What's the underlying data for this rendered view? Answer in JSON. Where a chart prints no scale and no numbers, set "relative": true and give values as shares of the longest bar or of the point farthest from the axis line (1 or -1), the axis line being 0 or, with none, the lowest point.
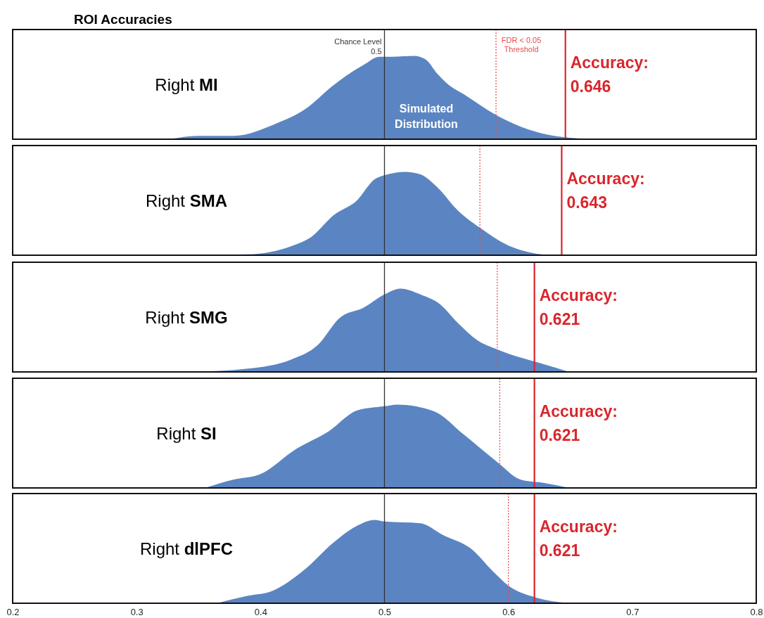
{
  "chart_data": [
    {
      "type": "area",
      "title": "ROI Accuracies",
      "annotations": [
        "Right MI",
        "Simulated Distribution"
      ],
      "relative": true,
      "color": "#5b85c2",
      "xlim": [
        0.2,
        0.8
      ],
      "xticks": [
        0.2,
        0.3,
        0.4,
        0.5,
        0.6,
        0.7,
        0.8
      ],
      "tick_labels": false,
      "x": [
        0.327,
        0.35,
        0.378,
        0.413,
        0.436,
        0.459,
        0.483,
        0.496,
        0.506,
        0.524,
        0.533,
        0.543,
        0.552,
        0.564,
        0.59,
        0.61,
        0.633,
        0.656,
        0.668
      ],
      "values": [
        0,
        0.04,
        0.04,
        0.19,
        0.36,
        0.65,
        0.89,
        0.99,
        0.99,
        1,
        0.96,
        0.78,
        0.65,
        0.54,
        0.29,
        0.15,
        0.05,
        0.01,
        0
      ],
      "ref_lines": [
        {
          "axis": "x",
          "value": 0.5,
          "label": "Chance Level 0.5",
          "color": "#333333"
        },
        {
          "axis": "x",
          "value": 0.59,
          "label": "FDR < 0.05 Threshold",
          "color": "#e8474a",
          "line_style": "dotted"
        },
        {
          "axis": "x",
          "value": 0.646,
          "label": "Accuracy: 0.646",
          "color": "#d9262c"
        }
      ]
    },
    {
      "type": "area",
      "annotations": [
        "Right SMA"
      ],
      "relative": true,
      "color": "#5b85c2",
      "xlim": [
        0.2,
        0.8
      ],
      "xticks": [
        0.2,
        0.3,
        0.4,
        0.5,
        0.6,
        0.7,
        0.8
      ],
      "tick_labels": false,
      "x": [
        0.344,
        0.39,
        0.425,
        0.441,
        0.459,
        0.478,
        0.492,
        0.5,
        0.517,
        0.529,
        0.543,
        0.559,
        0.578,
        0.598,
        0.622,
        0.633
      ],
      "values": [
        0,
        0.01,
        0.11,
        0.22,
        0.48,
        0.66,
        0.91,
        0.96,
        1,
        0.97,
        0.81,
        0.54,
        0.32,
        0.13,
        0.02,
        0
      ],
      "ref_lines": [
        {
          "axis": "x",
          "value": 0.5,
          "color": "#333333"
        },
        {
          "axis": "x",
          "value": 0.577,
          "color": "#e8474a",
          "line_style": "dotted"
        },
        {
          "axis": "x",
          "value": 0.643,
          "label": "Accuracy: 0.643",
          "color": "#d9262c"
        }
      ]
    },
    {
      "type": "area",
      "annotations": [
        "Right SMG"
      ],
      "relative": true,
      "color": "#5b85c2",
      "xlim": [
        0.2,
        0.8
      ],
      "xticks": [
        0.2,
        0.3,
        0.4,
        0.5,
        0.6,
        0.7,
        0.8
      ],
      "tick_labels": false,
      "x": [
        0.344,
        0.39,
        0.425,
        0.446,
        0.464,
        0.483,
        0.5,
        0.513,
        0.529,
        0.545,
        0.559,
        0.575,
        0.591,
        0.629,
        0.649
      ],
      "values": [
        0,
        0.04,
        0.15,
        0.32,
        0.65,
        0.77,
        0.93,
        1,
        0.93,
        0.81,
        0.59,
        0.38,
        0.27,
        0.09,
        0
      ],
      "ref_lines": [
        {
          "axis": "x",
          "value": 0.5,
          "color": "#333333"
        },
        {
          "axis": "x",
          "value": 0.591,
          "color": "#e8474a",
          "line_style": "dotted"
        },
        {
          "axis": "x",
          "value": 0.621,
          "label": "Accuracy: 0.621",
          "color": "#d9262c"
        }
      ]
    },
    {
      "type": "area",
      "annotations": [
        "Right SI"
      ],
      "relative": true,
      "color": "#5b85c2",
      "xlim": [
        0.2,
        0.8
      ],
      "xticks": [
        0.2,
        0.3,
        0.4,
        0.5,
        0.6,
        0.7,
        0.8
      ],
      "tick_labels": false,
      "x": [
        0.355,
        0.378,
        0.399,
        0.429,
        0.455,
        0.478,
        0.5,
        0.51,
        0.54,
        0.564,
        0.591,
        0.61,
        0.629,
        0.649
      ],
      "values": [
        0,
        0.1,
        0.16,
        0.47,
        0.68,
        0.93,
        0.98,
        1,
        0.92,
        0.64,
        0.31,
        0.1,
        0.06,
        0
      ],
      "ref_lines": [
        {
          "axis": "x",
          "value": 0.5,
          "color": "#333333"
        },
        {
          "axis": "x",
          "value": 0.593,
          "color": "#e8474a",
          "line_style": "dotted"
        },
        {
          "axis": "x",
          "value": 0.621,
          "label": "Accuracy: 0.621",
          "color": "#d9262c"
        }
      ]
    },
    {
      "type": "area",
      "annotations": [
        "Right dlPFC"
      ],
      "relative": true,
      "color": "#5b85c2",
      "xlim": [
        0.2,
        0.8
      ],
      "xticks": [
        0.2,
        0.3,
        0.4,
        0.5,
        0.6,
        0.7,
        0.8
      ],
      "tick_labels": "x",
      "x": [
        0.365,
        0.39,
        0.408,
        0.436,
        0.459,
        0.478,
        0.492,
        0.5,
        0.529,
        0.547,
        0.571,
        0.587,
        0.601,
        0.622,
        0.649
      ],
      "values": [
        0,
        0.09,
        0.14,
        0.41,
        0.73,
        0.93,
        1,
        0.98,
        0.96,
        0.82,
        0.64,
        0.39,
        0.2,
        0.07,
        0
      ],
      "ref_lines": [
        {
          "axis": "x",
          "value": 0.5,
          "color": "#333333"
        },
        {
          "axis": "x",
          "value": 0.6,
          "color": "#e8474a",
          "line_style": "dotted"
        },
        {
          "axis": "x",
          "value": 0.621,
          "label": "Accuracy: 0.621",
          "color": "#d9262c"
        }
      ]
    }
  ]
}
